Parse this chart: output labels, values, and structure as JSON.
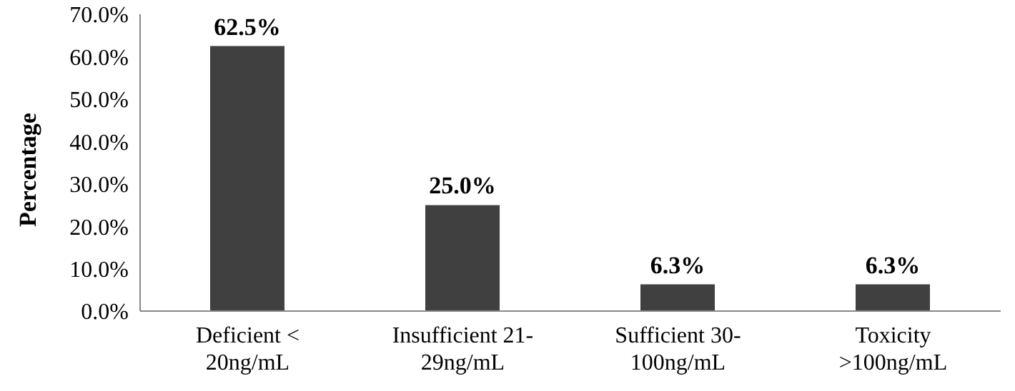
{
  "chart_data": {
    "type": "bar",
    "ylabel": "Percentage",
    "categories": [
      "Deficient <\n20ng/mL",
      "Insufficient 21-\n29ng/mL",
      "Sufficient 30-\n100ng/mL",
      "Toxicity\n>100ng/mL"
    ],
    "values": [
      62.5,
      25.0,
      6.3,
      6.3
    ],
    "value_labels": [
      "62.5%",
      "25.0%",
      "6.3%",
      "6.3%"
    ],
    "color": "#404040",
    "ylim": [
      0,
      70
    ],
    "yticks": [
      {
        "value": 0,
        "label": "0.0%"
      },
      {
        "value": 10,
        "label": "10.0%"
      },
      {
        "value": 20,
        "label": "20.0%"
      },
      {
        "value": 30,
        "label": "30.0%"
      },
      {
        "value": 40,
        "label": "40.0%"
      },
      {
        "value": 50,
        "label": "50.0%"
      },
      {
        "value": 60,
        "label": "60.0%"
      },
      {
        "value": 70,
        "label": "70.0%"
      }
    ],
    "grid": false
  }
}
